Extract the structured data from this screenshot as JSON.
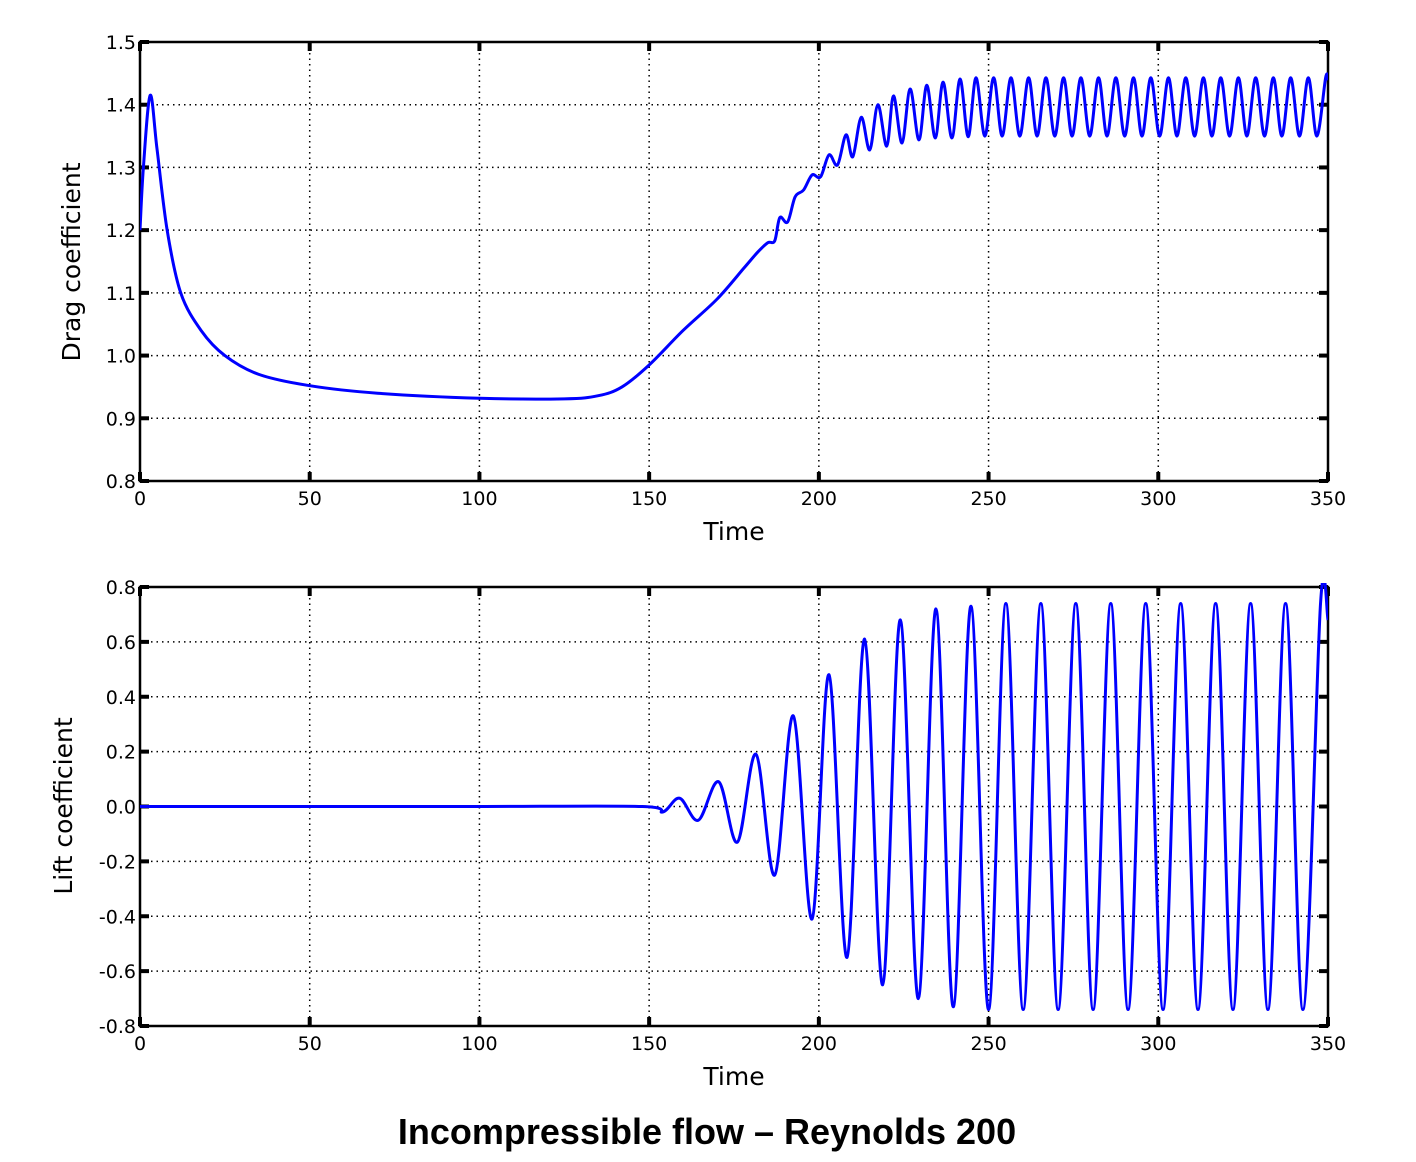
{
  "title": "Incompressible flow – Reynolds 200",
  "chart_data": [
    {
      "type": "line",
      "xlabel": "Time",
      "ylabel": "Drag coefficient",
      "xlim": [
        0,
        350
      ],
      "ylim": [
        0.8,
        1.5
      ],
      "xticks": [
        "0",
        "50",
        "100",
        "150",
        "200",
        "250",
        "300",
        "350"
      ],
      "yticks": [
        "0.8",
        "0.9",
        "1.0",
        "1.1",
        "1.2",
        "1.3",
        "1.4",
        "1.5"
      ],
      "grid": true,
      "color": "#0000ff",
      "points": [
        [
          0,
          1.2
        ],
        [
          1,
          1.3
        ],
        [
          3,
          1.415
        ],
        [
          5,
          1.33
        ],
        [
          8,
          1.2
        ],
        [
          12,
          1.1
        ],
        [
          18,
          1.04
        ],
        [
          25,
          1.0
        ],
        [
          35,
          0.97
        ],
        [
          50,
          0.952
        ],
        [
          70,
          0.94
        ],
        [
          100,
          0.932
        ],
        [
          125,
          0.931
        ],
        [
          135,
          0.936
        ],
        [
          142,
          0.95
        ],
        [
          150,
          0.985
        ],
        [
          160,
          1.04
        ],
        [
          170,
          1.09
        ],
        [
          178,
          1.14
        ],
        [
          182,
          1.165
        ],
        [
          185,
          1.18
        ],
        [
          187,
          1.183
        ],
        [
          188.5,
          1.22
        ],
        [
          190.8,
          1.213
        ],
        [
          193,
          1.253
        ],
        [
          195.5,
          1.264
        ],
        [
          198,
          1.288
        ],
        [
          200.5,
          1.285
        ],
        [
          203,
          1.32
        ],
        [
          205.5,
          1.304
        ],
        [
          208,
          1.352
        ],
        [
          210,
          1.317
        ],
        [
          212.5,
          1.38
        ],
        [
          215,
          1.328
        ],
        [
          217.4,
          1.4
        ],
        [
          220,
          1.334
        ],
        [
          222,
          1.414
        ],
        [
          224.5,
          1.339
        ],
        [
          226.9,
          1.425
        ],
        [
          229.5,
          1.344
        ],
        [
          231.8,
          1.431
        ],
        [
          234.3,
          1.347
        ],
        [
          236.6,
          1.436
        ],
        [
          239.2,
          1.347
        ],
        [
          241.6,
          1.441
        ],
        [
          244,
          1.349
        ],
        [
          246.3,
          1.443
        ],
        [
          248.9,
          1.35
        ],
        [
          251.5,
          1.443
        ],
        [
          254.0,
          1.35
        ],
        [
          256.6,
          1.443
        ],
        [
          259.2,
          1.35
        ],
        [
          261.8,
          1.443
        ],
        [
          264.3,
          1.35
        ],
        [
          266.9,
          1.443
        ],
        [
          269.5,
          1.35
        ],
        [
          272.1,
          1.443
        ],
        [
          274.6,
          1.35
        ],
        [
          277.2,
          1.443
        ],
        [
          279.8,
          1.35
        ],
        [
          282.4,
          1.443
        ],
        [
          284.9,
          1.35
        ],
        [
          287.5,
          1.443
        ],
        [
          290.1,
          1.35
        ],
        [
          292.7,
          1.443
        ],
        [
          295.2,
          1.35
        ],
        [
          297.8,
          1.443
        ],
        [
          300.4,
          1.35
        ],
        [
          303.0,
          1.443
        ],
        [
          305.5,
          1.35
        ],
        [
          308.1,
          1.443
        ],
        [
          310.7,
          1.35
        ],
        [
          313.3,
          1.443
        ],
        [
          315.8,
          1.35
        ],
        [
          318.4,
          1.443
        ],
        [
          321.0,
          1.35
        ],
        [
          323.6,
          1.443
        ],
        [
          326.1,
          1.35
        ],
        [
          328.7,
          1.443
        ],
        [
          331.3,
          1.35
        ],
        [
          333.9,
          1.443
        ],
        [
          336.4,
          1.35
        ],
        [
          339.0,
          1.443
        ],
        [
          341.6,
          1.35
        ],
        [
          344.2,
          1.443
        ],
        [
          346.7,
          1.35
        ],
        [
          349.3,
          1.443
        ],
        [
          350,
          1.44
        ]
      ]
    },
    {
      "type": "line",
      "xlabel": "Time",
      "ylabel": "Lift coefficient",
      "xlim": [
        0,
        350
      ],
      "ylim": [
        -0.8,
        0.8
      ],
      "xticks": [
        "0",
        "50",
        "100",
        "150",
        "200",
        "250",
        "300",
        "350"
      ],
      "yticks": [
        "-0.8",
        "-0.6",
        "-0.4",
        "-0.2",
        "0.0",
        "0.2",
        "0.4",
        "0.6",
        "0.8"
      ],
      "grid": true,
      "color": "#0000ff",
      "points": [
        [
          0,
          0
        ],
        [
          50,
          0
        ],
        [
          100,
          0
        ],
        [
          148,
          0
        ],
        [
          154,
          -0.02
        ],
        [
          159,
          0.03
        ],
        [
          164.5,
          -0.05
        ],
        [
          170.5,
          0.09
        ],
        [
          176,
          -0.13
        ],
        [
          181.5,
          0.19
        ],
        [
          187,
          -0.25
        ],
        [
          192.5,
          0.33
        ],
        [
          198,
          -0.41
        ],
        [
          203,
          0.48
        ],
        [
          208.3,
          -0.55
        ],
        [
          213.5,
          0.61
        ],
        [
          218.8,
          -0.65
        ],
        [
          224,
          0.68
        ],
        [
          229.3,
          -0.7
        ],
        [
          234.5,
          0.72
        ],
        [
          239.6,
          -0.73
        ],
        [
          244.8,
          0.73
        ],
        [
          250,
          -0.74
        ],
        [
          255.1,
          0.74
        ],
        [
          260.2,
          -0.74
        ],
        [
          265.4,
          0.74
        ],
        [
          270.5,
          -0.74
        ],
        [
          275.7,
          0.74
        ],
        [
          280.8,
          -0.74
        ],
        [
          286,
          0.74
        ],
        [
          291.1,
          -0.74
        ],
        [
          296.3,
          0.74
        ],
        [
          301.4,
          -0.74
        ],
        [
          306.6,
          0.74
        ],
        [
          311.7,
          -0.74
        ],
        [
          316.9,
          0.74
        ],
        [
          322,
          -0.74
        ],
        [
          327.2,
          0.74
        ],
        [
          332.3,
          -0.74
        ],
        [
          337.5,
          0.74
        ],
        [
          342.6,
          -0.74
        ],
        [
          347.8,
          0.74
        ],
        [
          350,
          0.68
        ]
      ]
    }
  ]
}
